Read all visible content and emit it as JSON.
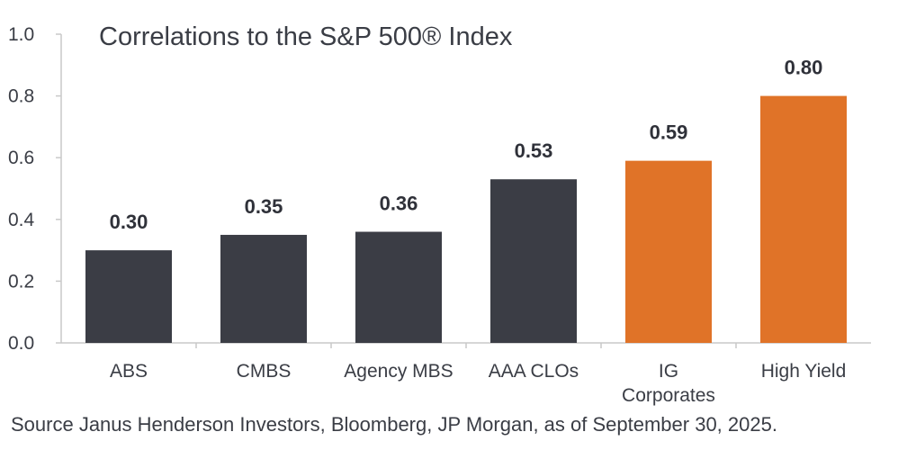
{
  "chart_data": {
    "type": "bar",
    "title": "Correlations to the S&P 500® Index",
    "categories": [
      "ABS",
      "CMBS",
      "Agency MBS",
      "AAA CLOs",
      "IG Corporates",
      "High Yield"
    ],
    "category_label_lines": [
      [
        "ABS"
      ],
      [
        "CMBS"
      ],
      [
        "Agency MBS"
      ],
      [
        "AAA CLOs"
      ],
      [
        "IG",
        "Corporates"
      ],
      [
        "High Yield"
      ]
    ],
    "values": [
      0.3,
      0.35,
      0.36,
      0.53,
      0.59,
      0.8
    ],
    "data_labels": [
      "0.30",
      "0.35",
      "0.36",
      "0.53",
      "0.59",
      "0.80"
    ],
    "bar_colors": [
      "#3b3d45",
      "#3b3d45",
      "#3b3d45",
      "#3b3d45",
      "#e07328",
      "#e07328"
    ],
    "ylim": [
      0,
      1.0
    ],
    "yticks": [
      0.0,
      0.2,
      0.4,
      0.6,
      0.8,
      1.0
    ],
    "ytick_labels": [
      "0.0",
      "0.2",
      "0.4",
      "0.6",
      "0.8",
      "1.0"
    ],
    "xlabel": "",
    "ylabel": "",
    "grid": false,
    "legend": "none"
  },
  "source_note": "Source Janus Henderson Investors, Bloomberg, JP Morgan, as of September 30, 2025."
}
